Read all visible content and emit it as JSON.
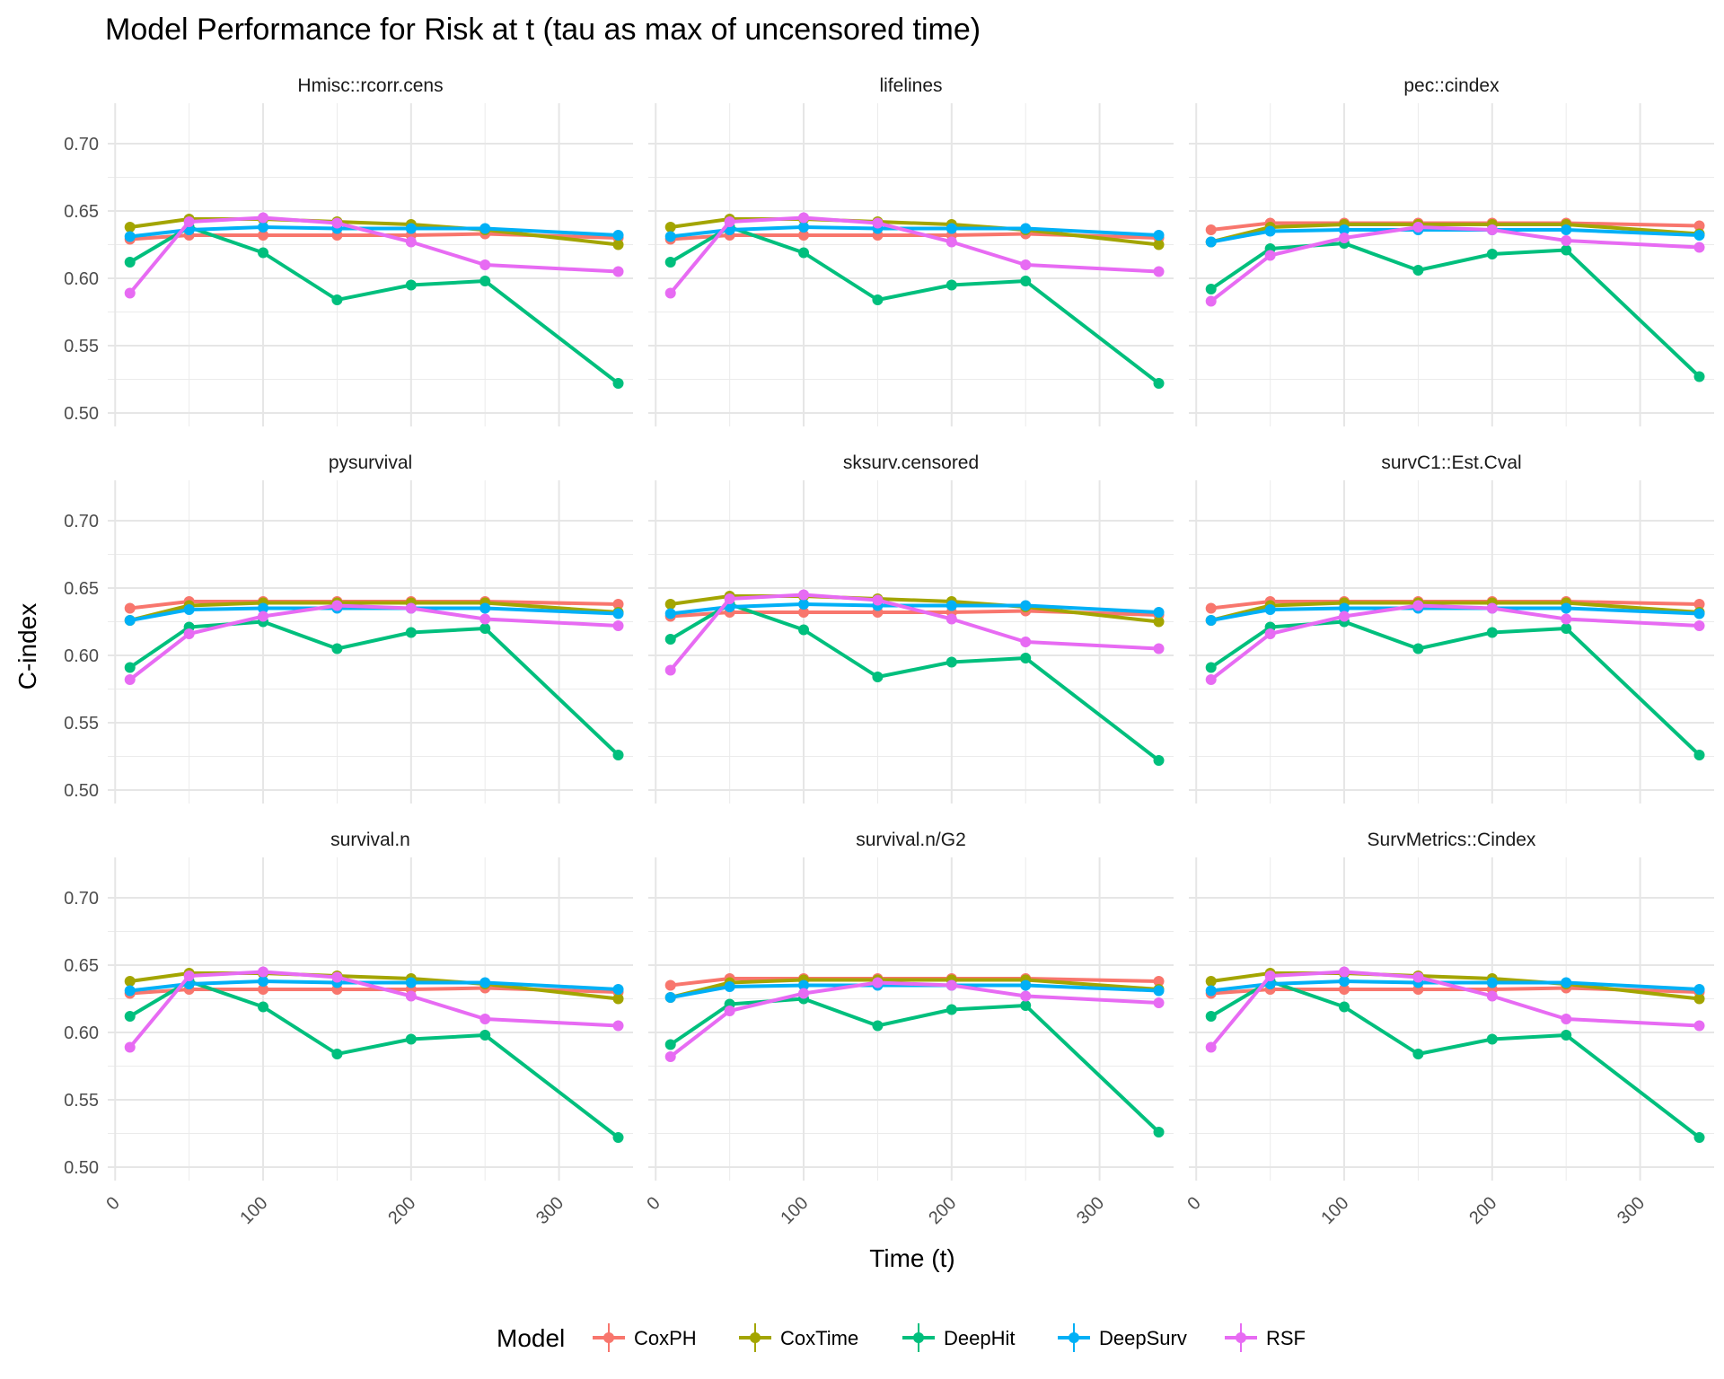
{
  "chart_data": {
    "type": "line",
    "title": "Model Performance for Risk at t (tau as max of uncensored time)",
    "xlabel": "Time (t)",
    "ylabel": "C-index",
    "xlim": [
      -5,
      350
    ],
    "ylim": [
      0.49,
      0.73
    ],
    "x_ticks": [
      0,
      100,
      200,
      300
    ],
    "y_ticks": [
      0.5,
      0.55,
      0.6,
      0.65,
      0.7
    ],
    "y_tick_labels": [
      "0.50",
      "0.55",
      "0.60",
      "0.65",
      "0.70"
    ],
    "grid": true,
    "legend": {
      "title": "Model",
      "placement": "bottom",
      "entries": [
        "CoxPH",
        "CoxTime",
        "DeepHit",
        "DeepSurv",
        "RSF"
      ]
    },
    "series_colors": {
      "CoxPH": "#F8766D",
      "CoxTime": "#A3A500",
      "DeepHit": "#00BF7D",
      "DeepSurv": "#00B0F6",
      "RSF": "#E76BF3"
    },
    "x": [
      10,
      50,
      100,
      150,
      200,
      250,
      340
    ],
    "panels": [
      {
        "name": "Hmisc::rcorr.cens",
        "series": [
          {
            "name": "CoxPH",
            "values": [
              0.629,
              0.632,
              0.632,
              0.632,
              0.632,
              0.633,
              0.63
            ]
          },
          {
            "name": "CoxTime",
            "values": [
              0.638,
              0.644,
              0.644,
              0.642,
              0.64,
              0.636,
              0.625
            ]
          },
          {
            "name": "DeepHit",
            "values": [
              0.612,
              0.638,
              0.619,
              0.584,
              0.595,
              0.598,
              0.522
            ]
          },
          {
            "name": "DeepSurv",
            "values": [
              0.631,
              0.636,
              0.638,
              0.637,
              0.637,
              0.637,
              0.632
            ]
          },
          {
            "name": "RSF",
            "values": [
              0.589,
              0.642,
              0.645,
              0.641,
              0.627,
              0.61,
              0.605
            ]
          }
        ]
      },
      {
        "name": "lifelines",
        "series": [
          {
            "name": "CoxPH",
            "values": [
              0.629,
              0.632,
              0.632,
              0.632,
              0.632,
              0.633,
              0.63
            ]
          },
          {
            "name": "CoxTime",
            "values": [
              0.638,
              0.644,
              0.644,
              0.642,
              0.64,
              0.636,
              0.625
            ]
          },
          {
            "name": "DeepHit",
            "values": [
              0.612,
              0.638,
              0.619,
              0.584,
              0.595,
              0.598,
              0.522
            ]
          },
          {
            "name": "DeepSurv",
            "values": [
              0.631,
              0.636,
              0.638,
              0.637,
              0.637,
              0.637,
              0.632
            ]
          },
          {
            "name": "RSF",
            "values": [
              0.589,
              0.642,
              0.645,
              0.641,
              0.627,
              0.61,
              0.605
            ]
          }
        ]
      },
      {
        "name": "pec::cindex",
        "series": [
          {
            "name": "CoxPH",
            "values": [
              0.636,
              0.641,
              0.641,
              0.641,
              0.641,
              0.641,
              0.639
            ]
          },
          {
            "name": "CoxTime",
            "values": [
              0.627,
              0.638,
              0.64,
              0.64,
              0.64,
              0.64,
              0.633
            ]
          },
          {
            "name": "DeepHit",
            "values": [
              0.592,
              0.622,
              0.626,
              0.606,
              0.618,
              0.621,
              0.527
            ]
          },
          {
            "name": "DeepSurv",
            "values": [
              0.627,
              0.635,
              0.636,
              0.636,
              0.636,
              0.636,
              0.632
            ]
          },
          {
            "name": "RSF",
            "values": [
              0.583,
              0.617,
              0.63,
              0.638,
              0.636,
              0.628,
              0.623
            ]
          }
        ]
      },
      {
        "name": "pysurvival",
        "series": [
          {
            "name": "CoxPH",
            "values": [
              0.635,
              0.64,
              0.64,
              0.64,
              0.64,
              0.64,
              0.638
            ]
          },
          {
            "name": "CoxTime",
            "values": [
              0.626,
              0.637,
              0.639,
              0.639,
              0.639,
              0.639,
              0.632
            ]
          },
          {
            "name": "DeepHit",
            "values": [
              0.591,
              0.621,
              0.625,
              0.605,
              0.617,
              0.62,
              0.526
            ]
          },
          {
            "name": "DeepSurv",
            "values": [
              0.626,
              0.634,
              0.635,
              0.635,
              0.635,
              0.635,
              0.631
            ]
          },
          {
            "name": "RSF",
            "values": [
              0.582,
              0.616,
              0.629,
              0.637,
              0.635,
              0.627,
              0.622
            ]
          }
        ]
      },
      {
        "name": "sksurv.censored",
        "series": [
          {
            "name": "CoxPH",
            "values": [
              0.629,
              0.632,
              0.632,
              0.632,
              0.632,
              0.633,
              0.63
            ]
          },
          {
            "name": "CoxTime",
            "values": [
              0.638,
              0.644,
              0.644,
              0.642,
              0.64,
              0.636,
              0.625
            ]
          },
          {
            "name": "DeepHit",
            "values": [
              0.612,
              0.638,
              0.619,
              0.584,
              0.595,
              0.598,
              0.522
            ]
          },
          {
            "name": "DeepSurv",
            "values": [
              0.631,
              0.636,
              0.638,
              0.637,
              0.637,
              0.637,
              0.632
            ]
          },
          {
            "name": "RSF",
            "values": [
              0.589,
              0.642,
              0.645,
              0.641,
              0.627,
              0.61,
              0.605
            ]
          }
        ]
      },
      {
        "name": "survC1::Est.Cval",
        "series": [
          {
            "name": "CoxPH",
            "values": [
              0.635,
              0.64,
              0.64,
              0.64,
              0.64,
              0.64,
              0.638
            ]
          },
          {
            "name": "CoxTime",
            "values": [
              0.626,
              0.637,
              0.639,
              0.639,
              0.639,
              0.639,
              0.632
            ]
          },
          {
            "name": "DeepHit",
            "values": [
              0.591,
              0.621,
              0.625,
              0.605,
              0.617,
              0.62,
              0.526
            ]
          },
          {
            "name": "DeepSurv",
            "values": [
              0.626,
              0.634,
              0.635,
              0.635,
              0.635,
              0.635,
              0.631
            ]
          },
          {
            "name": "RSF",
            "values": [
              0.582,
              0.616,
              0.629,
              0.637,
              0.635,
              0.627,
              0.622
            ]
          }
        ]
      },
      {
        "name": "survival.n",
        "series": [
          {
            "name": "CoxPH",
            "values": [
              0.629,
              0.632,
              0.632,
              0.632,
              0.632,
              0.633,
              0.63
            ]
          },
          {
            "name": "CoxTime",
            "values": [
              0.638,
              0.644,
              0.644,
              0.642,
              0.64,
              0.636,
              0.625
            ]
          },
          {
            "name": "DeepHit",
            "values": [
              0.612,
              0.638,
              0.619,
              0.584,
              0.595,
              0.598,
              0.522
            ]
          },
          {
            "name": "DeepSurv",
            "values": [
              0.631,
              0.636,
              0.638,
              0.637,
              0.637,
              0.637,
              0.632
            ]
          },
          {
            "name": "RSF",
            "values": [
              0.589,
              0.642,
              0.645,
              0.641,
              0.627,
              0.61,
              0.605
            ]
          }
        ]
      },
      {
        "name": "survival.n/G2",
        "series": [
          {
            "name": "CoxPH",
            "values": [
              0.635,
              0.64,
              0.64,
              0.64,
              0.64,
              0.64,
              0.638
            ]
          },
          {
            "name": "CoxTime",
            "values": [
              0.626,
              0.637,
              0.639,
              0.639,
              0.639,
              0.639,
              0.632
            ]
          },
          {
            "name": "DeepHit",
            "values": [
              0.591,
              0.621,
              0.625,
              0.605,
              0.617,
              0.62,
              0.526
            ]
          },
          {
            "name": "DeepSurv",
            "values": [
              0.626,
              0.634,
              0.635,
              0.635,
              0.635,
              0.635,
              0.631
            ]
          },
          {
            "name": "RSF",
            "values": [
              0.582,
              0.616,
              0.629,
              0.637,
              0.635,
              0.627,
              0.622
            ]
          }
        ]
      },
      {
        "name": "SurvMetrics::Cindex",
        "series": [
          {
            "name": "CoxPH",
            "values": [
              0.629,
              0.632,
              0.632,
              0.632,
              0.632,
              0.633,
              0.63
            ]
          },
          {
            "name": "CoxTime",
            "values": [
              0.638,
              0.644,
              0.644,
              0.642,
              0.64,
              0.636,
              0.625
            ]
          },
          {
            "name": "DeepHit",
            "values": [
              0.612,
              0.638,
              0.619,
              0.584,
              0.595,
              0.598,
              0.522
            ]
          },
          {
            "name": "DeepSurv",
            "values": [
              0.631,
              0.636,
              0.638,
              0.637,
              0.637,
              0.637,
              0.632
            ]
          },
          {
            "name": "RSF",
            "values": [
              0.589,
              0.642,
              0.645,
              0.641,
              0.627,
              0.61,
              0.605
            ]
          }
        ]
      }
    ]
  }
}
